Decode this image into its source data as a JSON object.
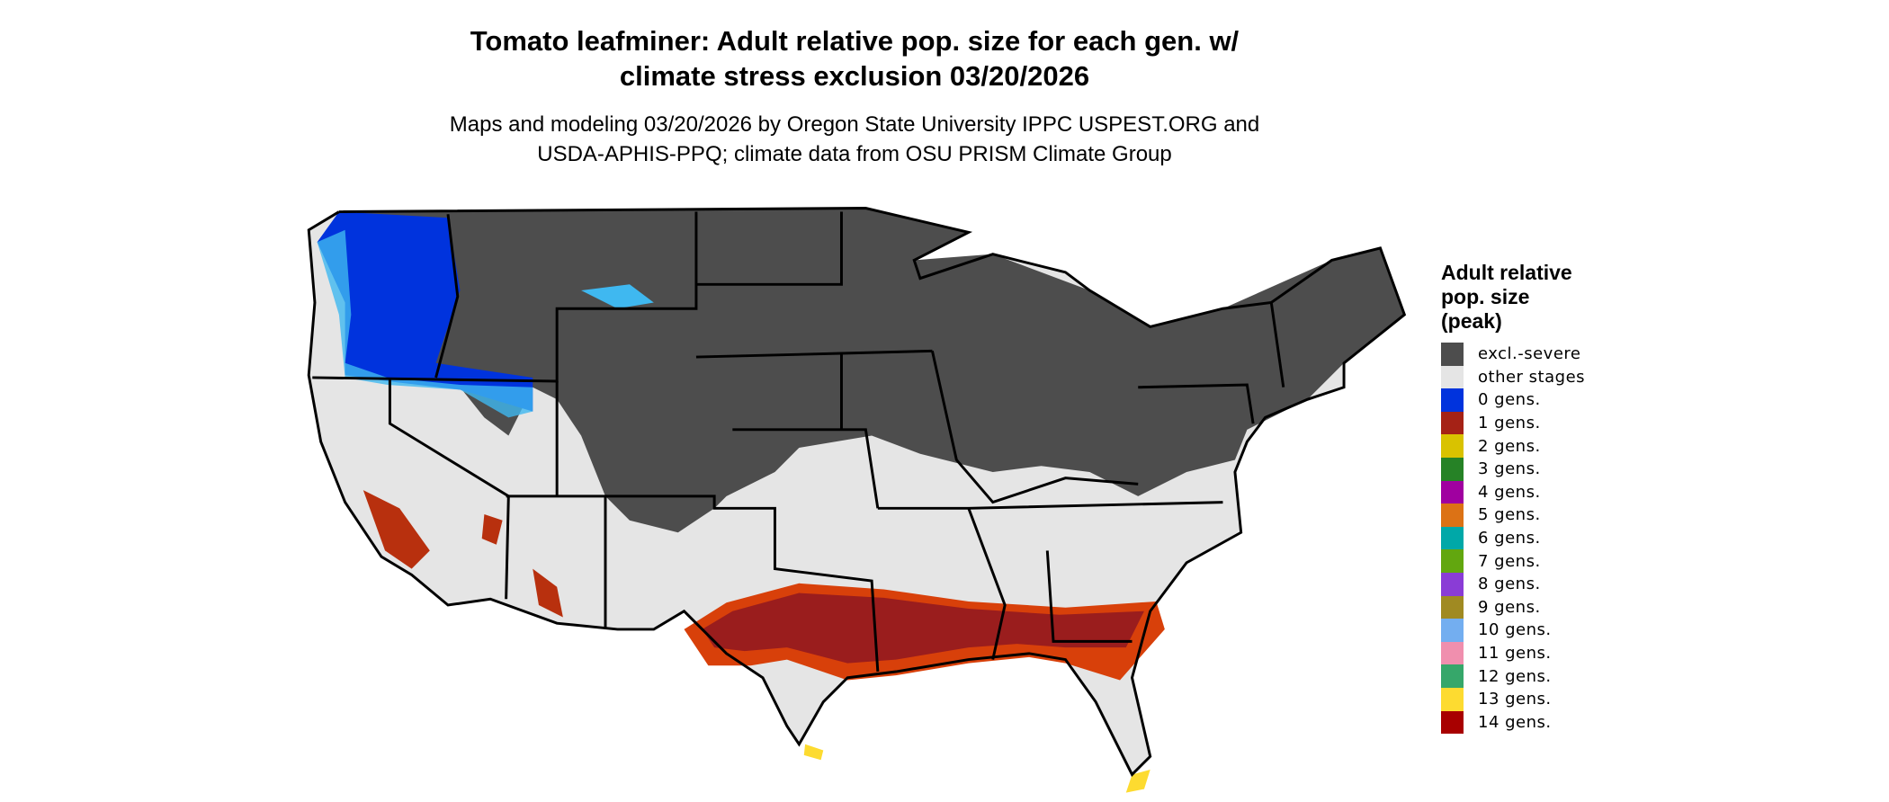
{
  "title_lines": [
    "Tomato leafminer: Adult relative pop. size for each gen. w/",
    "climate stress exclusion 03/20/2026"
  ],
  "subtitle_lines": [
    "Maps and modeling 03/20/2026 by Oregon State University IPPC USPEST.ORG and",
    "USDA-APHIS-PPQ; climate data from OSU PRISM Climate Group"
  ],
  "legend": {
    "title_lines": [
      "Adult relative",
      "pop. size",
      "(peak)"
    ],
    "items": [
      {
        "label": "excl.-severe",
        "color": "#4d4d4d"
      },
      {
        "label": "other stages",
        "color": "#e5e5e5"
      },
      {
        "label": "0 gens.",
        "color": "#0033dd"
      },
      {
        "label": "1 gens.",
        "color": "#a52216"
      },
      {
        "label": "2 gens.",
        "color": "#d9c200"
      },
      {
        "label": "3 gens.",
        "color": "#268226"
      },
      {
        "label": "4 gens.",
        "color": "#a000a0"
      },
      {
        "label": "5 gens.",
        "color": "#dc7215"
      },
      {
        "label": "6 gens.",
        "color": "#00a8a8"
      },
      {
        "label": "7 gens.",
        "color": "#62a70f"
      },
      {
        "label": "8 gens.",
        "color": "#8a3cd6"
      },
      {
        "label": "9 gens.",
        "color": "#a08a22"
      },
      {
        "label": "10 gens.",
        "color": "#73aef0"
      },
      {
        "label": "11 gens.",
        "color": "#f08fae"
      },
      {
        "label": "12 gens.",
        "color": "#36a76a"
      },
      {
        "label": "13 gens.",
        "color": "#fddb30"
      },
      {
        "label": "14 gens.",
        "color": "#a80000"
      }
    ]
  },
  "map_colors": {
    "border": "#000000",
    "orange_fringe": "#d8400a",
    "light_blue": "#3fb8f0"
  }
}
